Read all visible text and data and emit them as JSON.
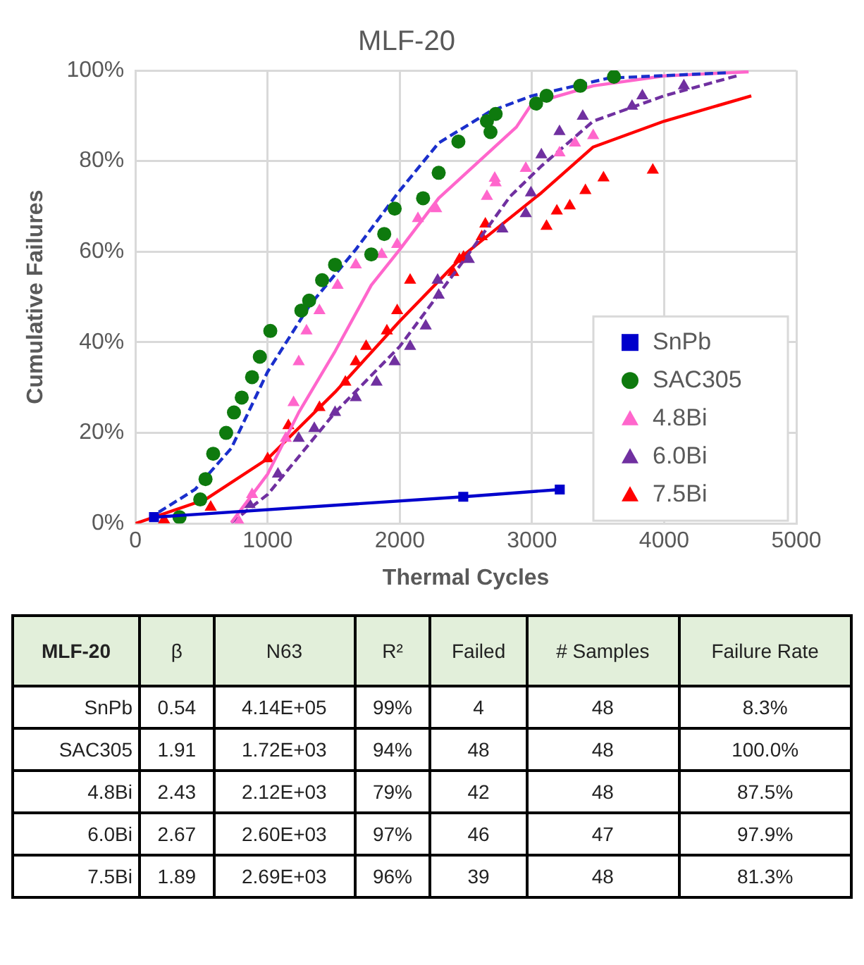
{
  "chart_data": [
    {
      "type": "scatter",
      "title": "MLF-20",
      "xlabel": "Thermal Cycles",
      "ylabel": "Cumulative Failures",
      "xlim": [
        0,
        5000
      ],
      "xticks": [
        0,
        1000,
        2000,
        3000,
        4000,
        5000
      ],
      "ylim": [
        0,
        100
      ],
      "yticks": [
        {
          "value": 0,
          "label": "0%"
        },
        {
          "value": 20,
          "label": "20%"
        },
        {
          "value": 40,
          "label": "40%"
        },
        {
          "value": 60,
          "label": "60%"
        },
        {
          "value": 80,
          "label": "80%"
        },
        {
          "value": 100,
          "label": "100%"
        }
      ],
      "grid": true,
      "legend": "bottom right",
      "series": [
        {
          "name": "SnPb",
          "type": "line",
          "marker": "square",
          "line_style": "solid",
          "color": "#0000cc",
          "x": [
            140,
            2480,
            3210
          ],
          "values": [
            1.4,
            5.9,
            7.5
          ]
        },
        {
          "name": "SAC305",
          "type": "scatter",
          "marker": "circle",
          "color": "#0e7a0e",
          "x": [
            333,
            490,
            530,
            588,
            686,
            745,
            804,
            882,
            941,
            1020,
            1255,
            1314,
            1412,
            1510,
            1784,
            1882,
            1961,
            2176,
            2294,
            2443,
            2659,
            2686,
            2725,
            3031,
            3110,
            3365,
            3620
          ],
          "values": [
            1.4,
            5.3,
            9.8,
            15.4,
            20,
            24.5,
            27.8,
            32.3,
            36.8,
            42.5,
            47,
            49.2,
            53.7,
            57.1,
            59.4,
            63.9,
            69.5,
            71.8,
            77.4,
            84.3,
            88.8,
            86.4,
            90.4,
            92.7,
            94.4,
            96.6,
            98.6
          ]
        },
        {
          "type": "line",
          "marker": "none",
          "line_style": "dashed",
          "color": "#1a2fcc",
          "x": [
            176,
            450,
            725,
            1000,
            1314,
            1667,
            2000,
            2294,
            2686,
            3000,
            3580,
            4482
          ],
          "values": [
            2.5,
            7.5,
            16.6,
            33.5,
            48,
            60.5,
            73.5,
            84,
            91,
            94.4,
            98.3,
            99.5
          ]
        },
        {
          "name": "4.8Bi",
          "type": "scatter",
          "marker": "triangle",
          "color": "#ff66cc",
          "x": [
            784,
            882,
            1137,
            1196,
            1235,
            1294,
            1392,
            1529,
            1667,
            1863,
            1980,
            2137,
            2275,
            2659,
            2718,
            2725,
            2953,
            3208,
            3325,
            3463
          ],
          "values": [
            0.4,
            6.4,
            18.8,
            26.7,
            35.7,
            42.5,
            47,
            52.6,
            57.1,
            59.4,
            61.6,
            67.3,
            69.5,
            72.2,
            76.2,
            75.2,
            78.4,
            81.8,
            84,
            85.6
          ]
        },
        {
          "type": "line",
          "marker": "none",
          "line_style": "solid",
          "color": "#ff66cc",
          "x": [
            725,
            1000,
            1235,
            1510,
            1784,
            2000,
            2294,
            2882,
            3000,
            3463,
            4000,
            4639
          ],
          "values": [
            0.2,
            10.9,
            24.5,
            38,
            52.6,
            60.5,
            71.8,
            87.5,
            92.7,
            96.6,
            98.8,
            99.7
          ]
        },
        {
          "name": "6.0Bi",
          "type": "scatter",
          "marker": "triangle",
          "color": "#7030a0",
          "x": [
            863,
            1078,
            1235,
            1353,
            1510,
            1667,
            1824,
            1961,
            2078,
            2196,
            2286,
            2294,
            2522,
            2776,
            2953,
            2992,
            3071,
            3208,
            3384,
            3757,
            3835,
            4149
          ],
          "values": [
            4.2,
            10.9,
            18.8,
            21,
            24.5,
            27.8,
            31.2,
            35.7,
            39.1,
            43.6,
            53.7,
            50.4,
            58.3,
            65,
            68.4,
            73,
            81.4,
            86.5,
            89.9,
            92.1,
            94.4,
            96.6
          ]
        },
        {
          "type": "line",
          "marker": "none",
          "line_style": "dashed",
          "color": "#7030a0",
          "x": [
            725,
            1000,
            1510,
            2000,
            2490,
            2835,
            3071,
            3463,
            4000,
            4561
          ],
          "values": [
            0.2,
            6.4,
            24.5,
            39.1,
            58.3,
            72.2,
            78.9,
            88.8,
            94.4,
            98.9
          ]
        },
        {
          "name": "7.5Bi",
          "type": "scatter",
          "marker": "triangle",
          "color": "#ff0000",
          "x": [
            216,
            569,
            1000,
            1157,
            1392,
            1588,
            1667,
            1745,
            1902,
            1980,
            2078,
            2404,
            2451,
            2482,
            2620,
            2647,
            3110,
            3188,
            3286,
            3404,
            3541,
            3914
          ],
          "values": [
            0.8,
            3.6,
            14.3,
            21.6,
            25.6,
            31.2,
            35.7,
            39.1,
            42.5,
            47,
            53.7,
            55.4,
            58.3,
            58.8,
            63.3,
            66.1,
            65.6,
            69,
            70.1,
            73.5,
            76.3,
            78
          ]
        },
        {
          "type": "line",
          "marker": "none",
          "line_style": "solid",
          "color": "#ff0000",
          "x": [
            0,
            529,
            1000,
            1510,
            2000,
            2490,
            3071,
            3463,
            4000,
            4659
          ],
          "values": [
            0,
            5.3,
            14.3,
            29,
            44.7,
            59.4,
            73,
            83.1,
            88.8,
            94.4
          ]
        }
      ]
    },
    {
      "type": "other",
      "categories": [
        "MLF-20",
        "β",
        "N63",
        "R²",
        "Failed",
        "# Samples",
        "Failure Rate"
      ],
      "y_categories": [
        "SnPb",
        "SAC305",
        "4.8Bi",
        "6.0Bi",
        "7.5Bi"
      ],
      "cell_labels": [
        [
          "0.54",
          "4.14E+05",
          "99%",
          "4",
          "48",
          "8.3%"
        ],
        [
          "1.91",
          "1.72E+03",
          "94%",
          "48",
          "48",
          "100.0%"
        ],
        [
          "2.43",
          "2.12E+03",
          "79%",
          "42",
          "48",
          "87.5%"
        ],
        [
          "2.67",
          "2.60E+03",
          "97%",
          "46",
          "47",
          "97.9%"
        ],
        [
          "1.89",
          "2.69E+03",
          "96%",
          "39",
          "48",
          "81.3%"
        ]
      ]
    }
  ]
}
